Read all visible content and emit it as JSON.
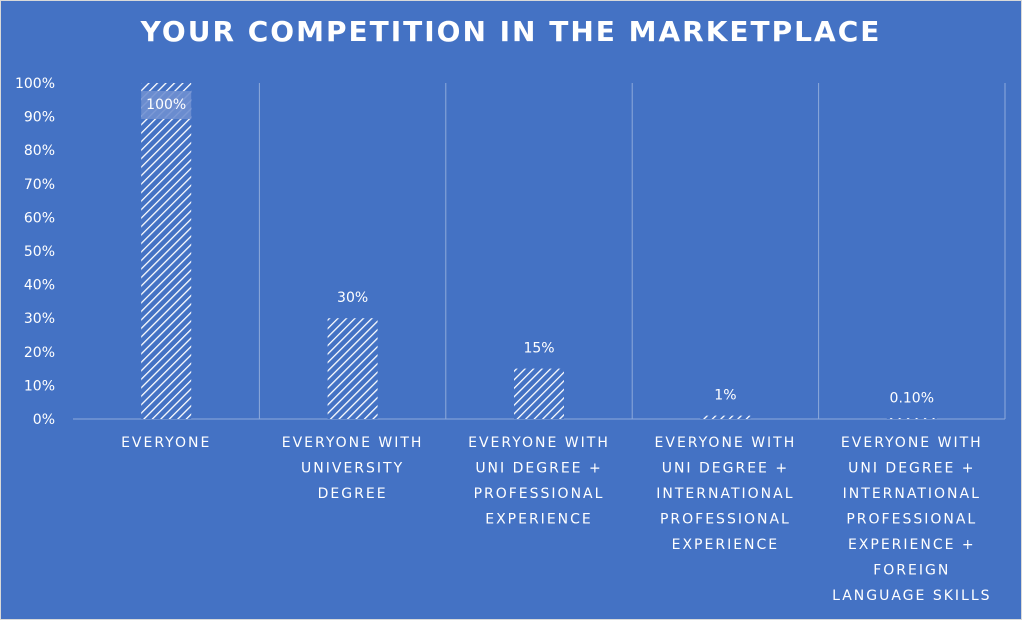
{
  "colors": {
    "background": "#4472c4",
    "foreground": "#ffffff",
    "gridline": "#8eaadb"
  },
  "chart_data": {
    "type": "bar",
    "title": "YOUR COMPETITION IN THE MARKETPLACE",
    "xlabel": "",
    "ylabel": "",
    "categories": [
      "EVERYONE",
      "EVERYONE WITH UNIVERSITY DEGREE",
      "EVERYONE WITH UNI DEGREE + PROFESSIONAL EXPERIENCE",
      "EVERYONE WITH UNI DEGREE + INTERNATIONAL PROFESSIONAL EXPERIENCE",
      "EVERYONE WITH UNI DEGREE + INTERNATIONAL PROFESSIONAL EXPERIENCE + FOREIGN LANGUAGE SKILLS"
    ],
    "category_label_lines": [
      [
        "EVERYONE"
      ],
      [
        "EVERYONE WITH",
        "UNIVERSITY",
        "DEGREE"
      ],
      [
        "EVERYONE WITH",
        "UNI DEGREE +",
        "PROFESSIONAL",
        "EXPERIENCE"
      ],
      [
        "EVERYONE WITH",
        "UNI DEGREE +",
        "INTERNATIONAL",
        "PROFESSIONAL",
        "EXPERIENCE"
      ],
      [
        "EVERYONE WITH",
        "UNI DEGREE +",
        "INTERNATIONAL",
        "PROFESSIONAL",
        "EXPERIENCE +",
        "FOREIGN",
        "LANGUAGE SKILLS"
      ]
    ],
    "values": [
      100,
      30,
      15,
      1,
      0.1
    ],
    "data_labels": [
      "100%",
      "30%",
      "15%",
      "1%",
      "0.10%"
    ],
    "ylim": [
      0,
      100
    ],
    "y_ticks": [
      0,
      10,
      20,
      30,
      40,
      50,
      60,
      70,
      80,
      90,
      100
    ],
    "y_tick_labels": [
      "0%",
      "10%",
      "20%",
      "30%",
      "40%",
      "50%",
      "60%",
      "70%",
      "80%",
      "90%",
      "100%"
    ],
    "fill": "diagonal-hatch",
    "grid": "vertical separators between categories",
    "legend": "none"
  }
}
